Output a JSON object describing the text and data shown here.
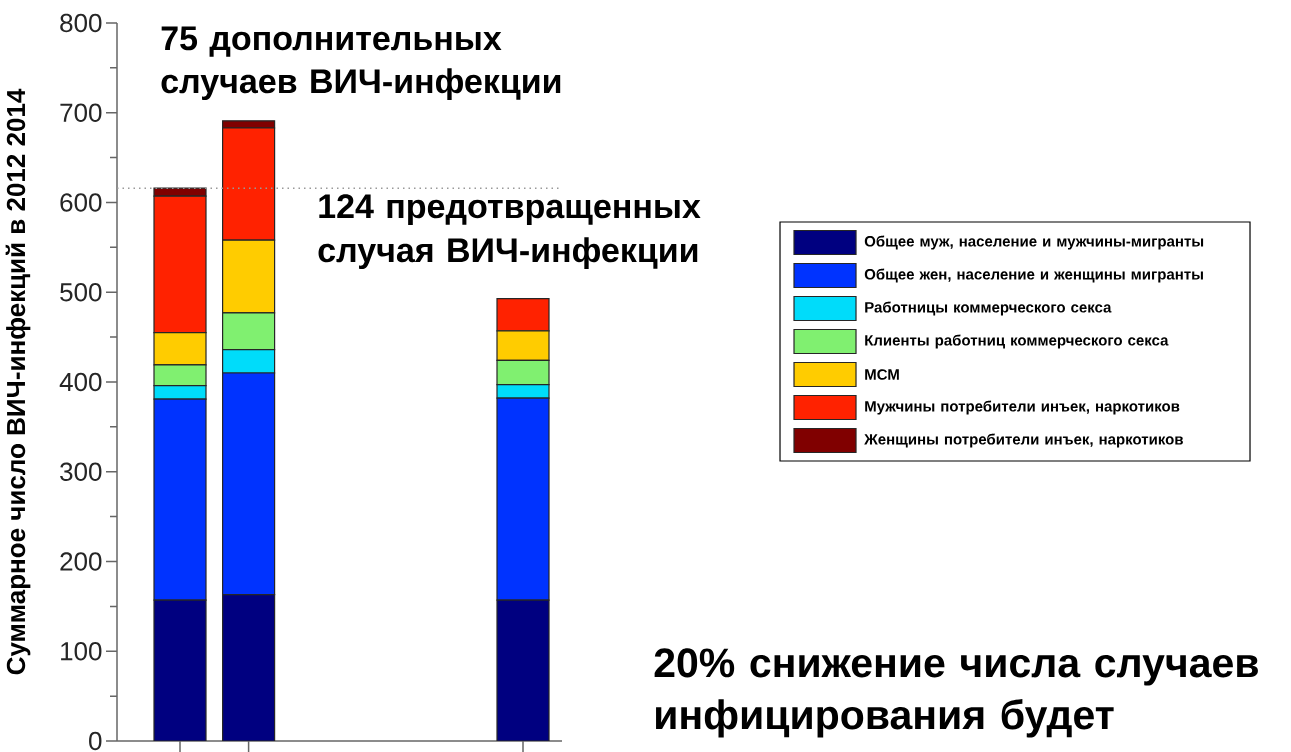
{
  "chart_data": {
    "type": "bar",
    "stacked": true,
    "ylabel": "Суммарное число ВИЧ-инфекций в 2012 2014",
    "annotations": [
      "75 дополнительных случаев ВИЧ-инфекции",
      "124 предотвращенных случая ВИЧ-инфекции",
      "20% снижение числа случаев инфицирования будет"
    ],
    "categories": [
      null,
      null,
      null,
      null,
      null,
      null
    ],
    "series": [
      {
        "name": "Общее муж, население и мужчины-мигранты",
        "color": "#000080",
        "values": [
          157,
          163,
          null,
          null,
          null,
          157
        ]
      },
      {
        "name": "Общее жен, население и женщины мигранты",
        "color": "#0033ff",
        "values": [
          224,
          247,
          null,
          null,
          null,
          225
        ]
      },
      {
        "name": "Работницы коммерческого секса",
        "color": "#00dcfa",
        "values": [
          15,
          26,
          null,
          null,
          null,
          15
        ]
      },
      {
        "name": "Клиенты работниц коммерческого секса",
        "color": "#80f070",
        "values": [
          23,
          41,
          null,
          null,
          null,
          27
        ]
      },
      {
        "name": "МСМ",
        "color": "#ffcc00",
        "values": [
          36,
          81,
          null,
          null,
          null,
          33
        ]
      },
      {
        "name": "Мужчины потребители инъек, наркотиков",
        "color": "#ff2200",
        "values": [
          152,
          125,
          null,
          null,
          null,
          36
        ]
      },
      {
        "name": "Женщины потребители инъек, наркотиков",
        "color": "#800000",
        "values": [
          9,
          8,
          null,
          null,
          null,
          null
        ]
      }
    ],
    "ylim": [
      0,
      800
    ],
    "yticks": [
      0,
      {
        "value": 50,
        "label": null
      },
      100,
      {
        "value": 150,
        "label": null
      },
      200,
      {
        "value": 250,
        "label": null
      },
      300,
      {
        "value": 350,
        "label": null
      },
      400,
      {
        "value": 450,
        "label": null
      },
      500,
      {
        "value": 550,
        "label": null
      },
      600,
      {
        "value": 650,
        "label": null
      },
      700,
      {
        "value": 750,
        "label": null
      },
      800
    ],
    "ref_lines": [
      {
        "axis": "y",
        "value": 616,
        "line_style": "dotted",
        "color": "#999999"
      }
    ],
    "legend": "right",
    "tick_labels": "y"
  }
}
